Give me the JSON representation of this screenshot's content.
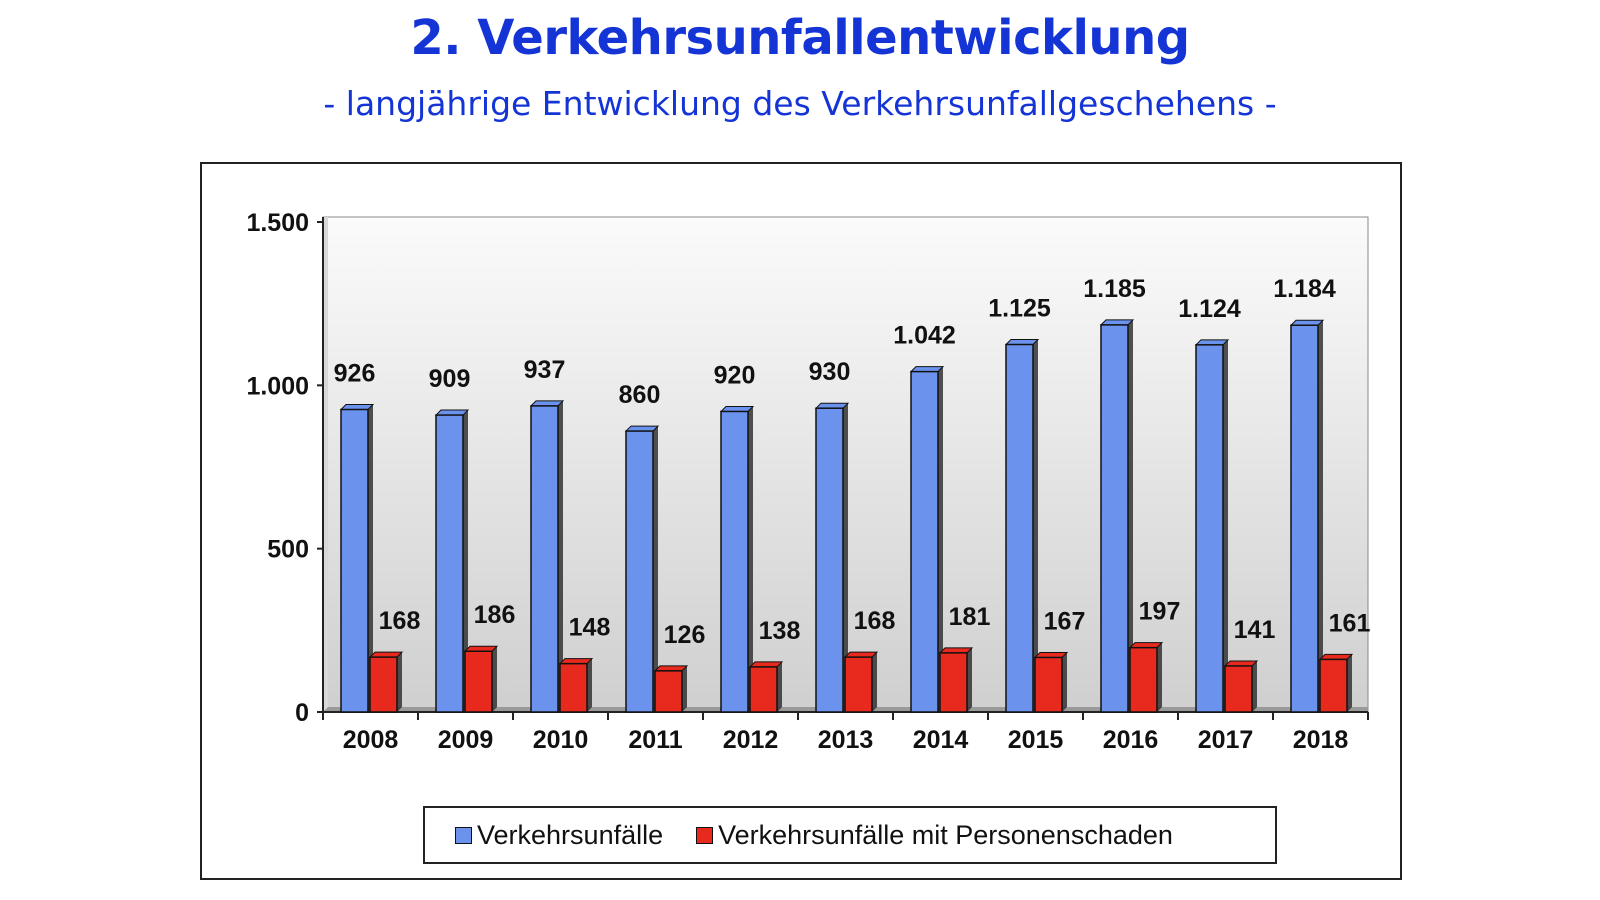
{
  "title": "2. Verkehrsunfallentwicklung",
  "subtitle": "- langjährige Entwicklung des Verkehrsunfallgeschehens -",
  "colors": {
    "title": "#1434d6",
    "series_blue": "#6b93ee",
    "series_red": "#e82a1e",
    "plot_bg_top": "#fbfbfb",
    "plot_bg_bottom": "#cfcfcf"
  },
  "chart_data": {
    "type": "bar",
    "categories": [
      "2008",
      "2009",
      "2010",
      "2011",
      "2012",
      "2013",
      "2014",
      "2015",
      "2016",
      "2017",
      "2018"
    ],
    "series": [
      {
        "name": "Verkehrsunfälle",
        "values": [
          926,
          909,
          937,
          860,
          920,
          930,
          1042,
          1125,
          1185,
          1124,
          1184
        ],
        "labels": [
          "926",
          "909",
          "937",
          "860",
          "920",
          "930",
          "1.042",
          "1.125",
          "1.185",
          "1.124",
          "1.184"
        ]
      },
      {
        "name": "Verkehrsunfälle mit Personenschaden",
        "values": [
          168,
          186,
          148,
          126,
          138,
          168,
          181,
          167,
          197,
          141,
          161
        ],
        "labels": [
          "168",
          "186",
          "148",
          "126",
          "138",
          "168",
          "181",
          "167",
          "197",
          "141",
          "161"
        ]
      }
    ],
    "y_ticks": [
      0,
      500,
      1000,
      1500
    ],
    "y_tick_labels": [
      "0",
      "500",
      "1.000",
      "1.500"
    ],
    "ylim": [
      0,
      1500
    ],
    "grid": false,
    "legend_position": "bottom"
  }
}
